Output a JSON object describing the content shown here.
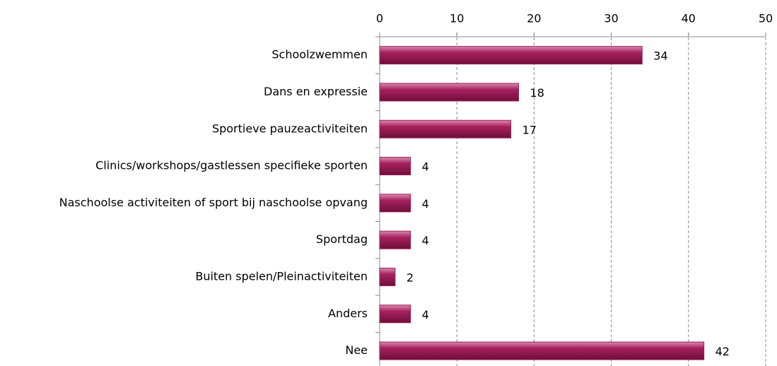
{
  "chart_data": {
    "type": "barh",
    "categories": [
      "Schoolzwemmen",
      "Dans en expressie",
      "Sportieve pauzeactiviteiten",
      "Clinics/workshops/gastlessen specifieke sporten",
      "Naschoolse activiteiten of sport bij naschoolse opvang",
      "Sportdag",
      "Buiten spelen/Pleinactiviteiten",
      "Anders",
      "Nee"
    ],
    "values": [
      34,
      18,
      17,
      4,
      4,
      4,
      2,
      4,
      42
    ],
    "color": "#9b1b56",
    "xlim": [
      0,
      50
    ],
    "xticks": [
      0,
      10,
      20,
      30,
      40,
      50
    ],
    "grid": true
  }
}
